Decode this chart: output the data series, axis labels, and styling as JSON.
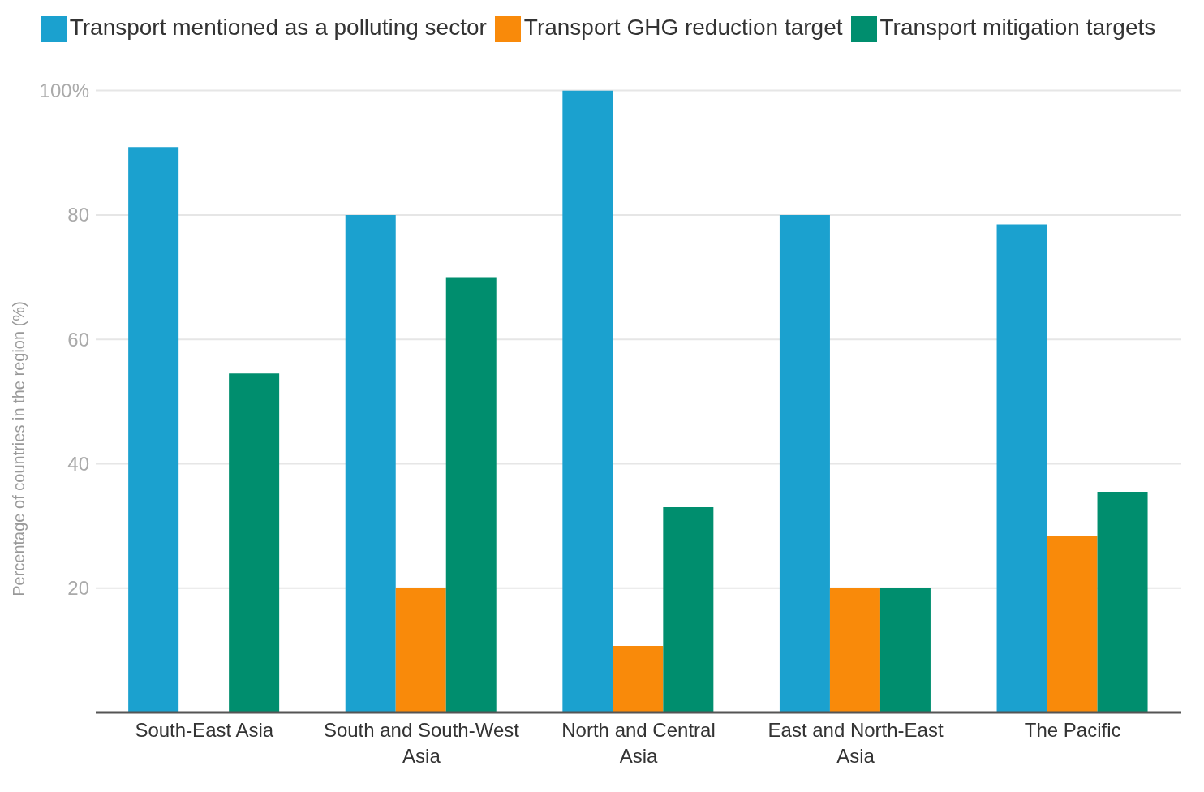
{
  "chart_data": {
    "type": "bar",
    "ylabel": "Percentage of countries in the region (%)",
    "categories": [
      "South-East Asia",
      "South and South-West Asia",
      "North and Central Asia",
      "East and North-East Asia",
      "The Pacific"
    ],
    "series": [
      {
        "name": "Transport mentioned as a polluting sector",
        "color": "#1ba1cf",
        "values": [
          90.9,
          80,
          100,
          80,
          78.5
        ]
      },
      {
        "name": "Transport GHG reduction target",
        "color": "#f98a0a",
        "values": [
          0,
          20,
          10.7,
          20,
          28.4
        ]
      },
      {
        "name": "Transport mitigation targets",
        "color": "#008e6e",
        "values": [
          54.5,
          70,
          33,
          20,
          35.5
        ]
      }
    ],
    "ylim": [
      0,
      100
    ],
    "yticks": [
      {
        "value": 0,
        "label": null
      },
      20,
      40,
      60,
      80,
      {
        "value": 100,
        "label": "100%"
      }
    ],
    "grid": "y",
    "legend": "top"
  }
}
